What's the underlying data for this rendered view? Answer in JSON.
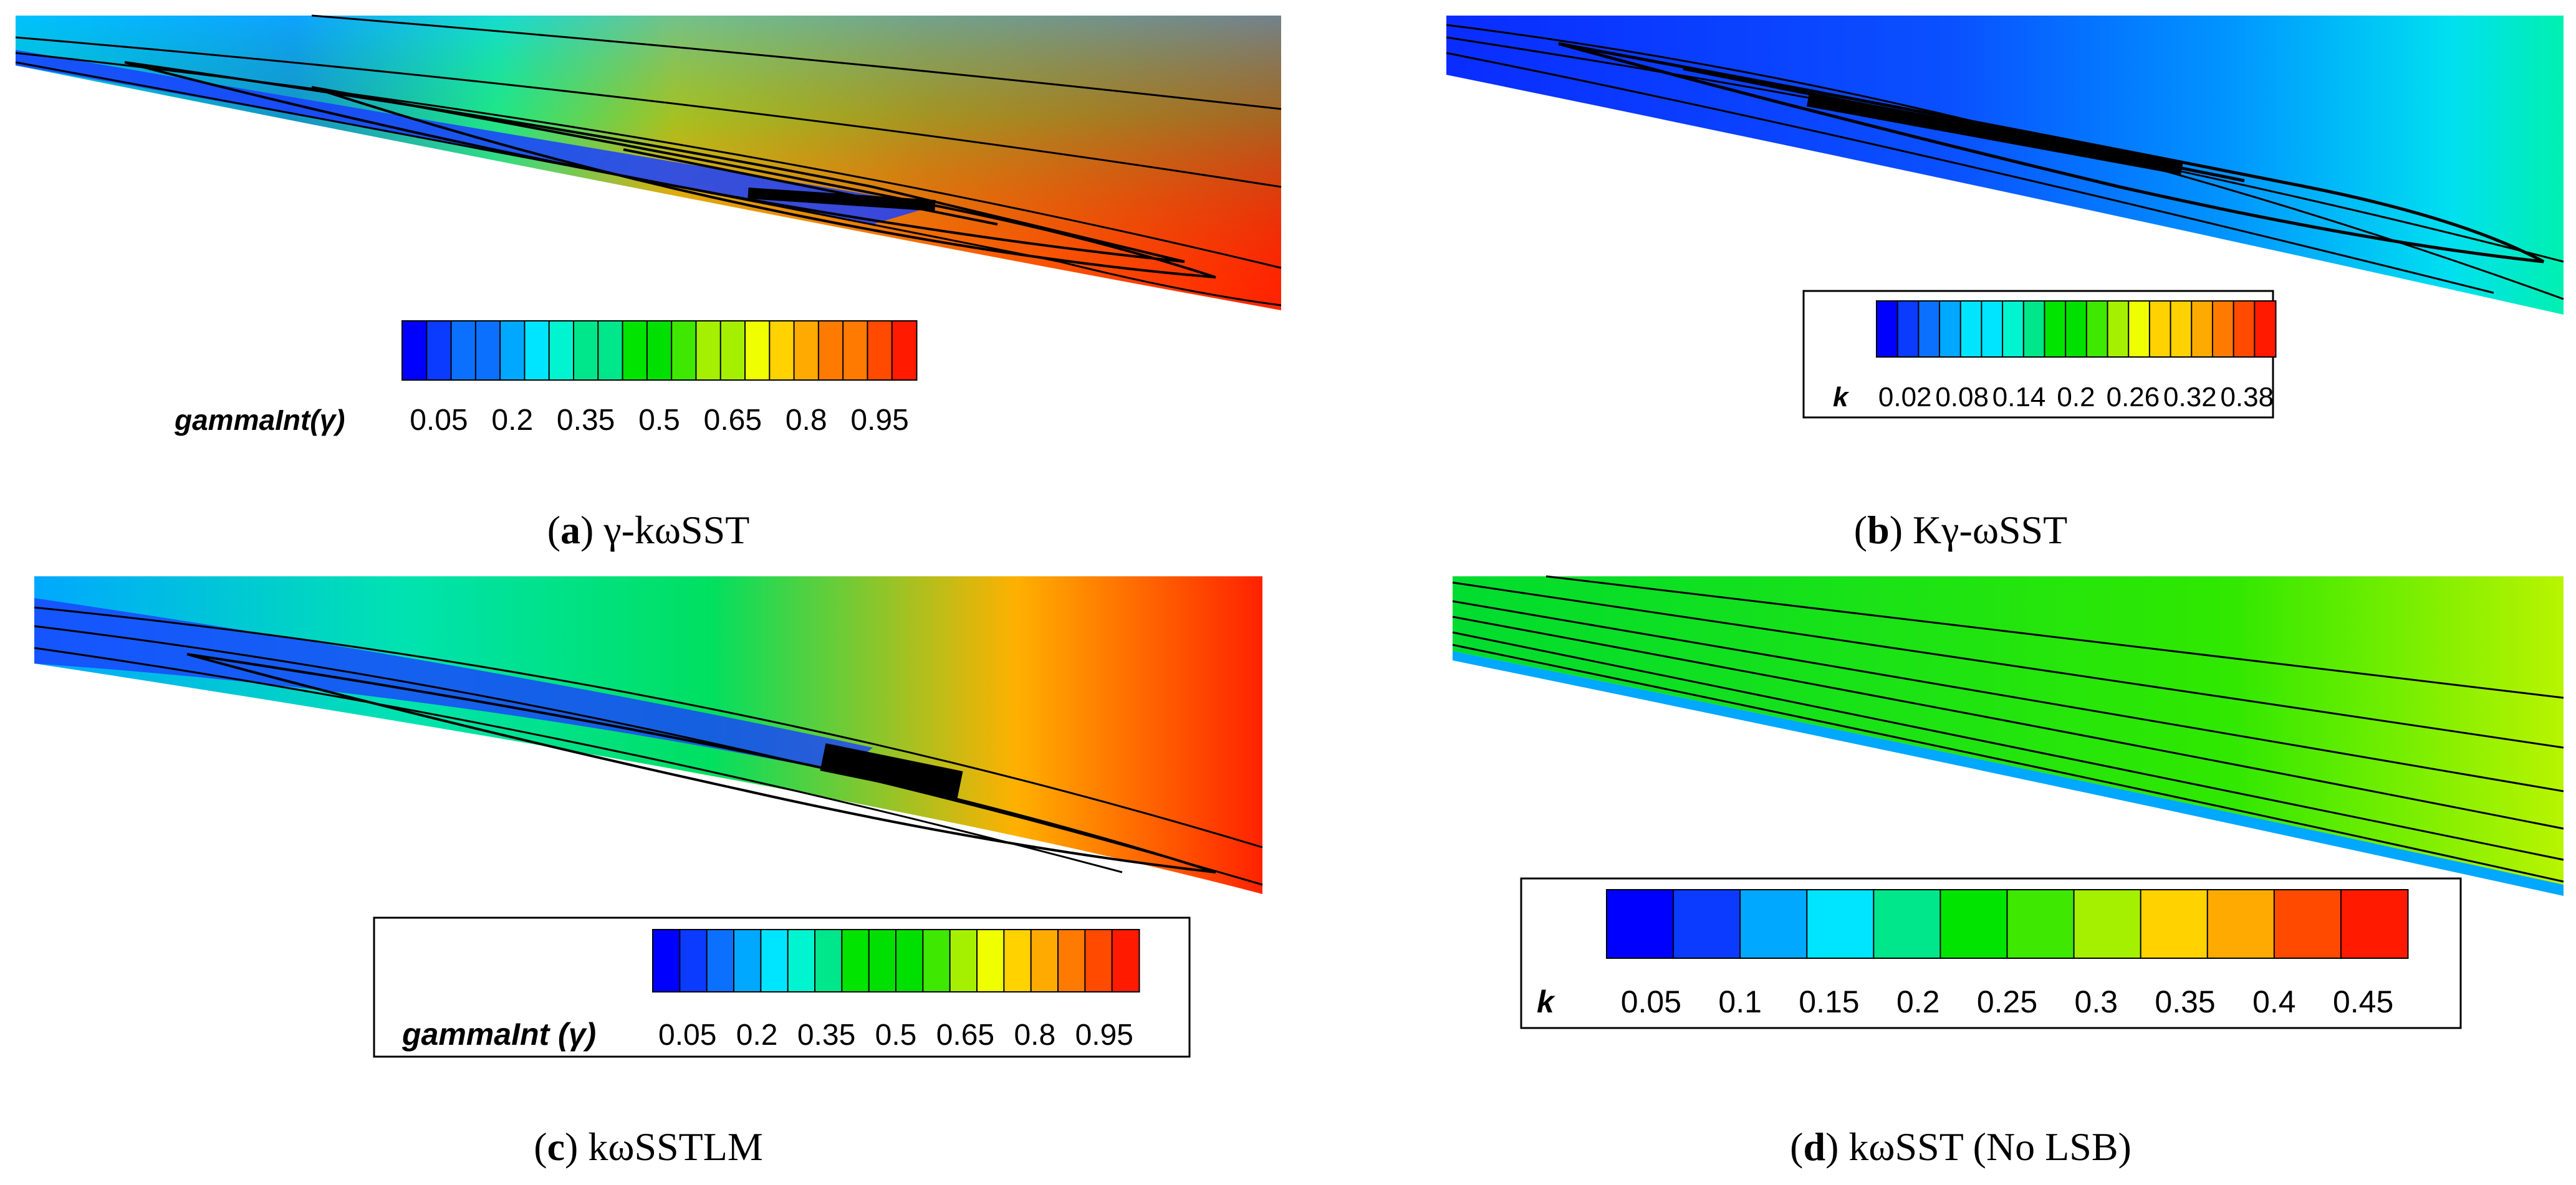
{
  "panels": [
    {
      "id": "a",
      "caption_letter": "a",
      "caption_text": "γ-kωSST",
      "legend_label": "gammaInt(γ)",
      "legend_ticks": [
        "0.05",
        "0.2",
        "0.35",
        "0.5",
        "0.65",
        "0.8",
        "0.95"
      ],
      "legend_boxed": false
    },
    {
      "id": "b",
      "caption_letter": "b",
      "caption_text": "Kγ-ωSST",
      "legend_label": "k",
      "legend_ticks": [
        "0.02",
        "0.08",
        "0.14",
        "0.2",
        "0.26",
        "0.32",
        "0.38"
      ],
      "legend_boxed": true
    },
    {
      "id": "c",
      "caption_letter": "c",
      "caption_text": "kωSSTLM",
      "legend_label": "gammaInt (γ)",
      "legend_ticks": [
        "0.05",
        "0.2",
        "0.35",
        "0.5",
        "0.65",
        "0.8",
        "0.95"
      ],
      "legend_boxed": true
    },
    {
      "id": "d",
      "caption_letter": "d",
      "caption_text": "kωSST (No LSB)",
      "legend_label": "k",
      "legend_ticks": [
        "0.05",
        "0.1",
        "0.15",
        "0.2",
        "0.25",
        "0.3",
        "0.35",
        "0.4",
        "0.45"
      ],
      "legend_boxed": true
    }
  ],
  "colors": {
    "rainbow": [
      "#0000ff",
      "#0a3bff",
      "#0c70ff",
      "#00a8ff",
      "#00e5ff",
      "#00f4d0",
      "#00e68a",
      "#00e400",
      "#00e000",
      "#3fe800",
      "#a5f000",
      "#f0ff00",
      "#ffd200",
      "#ffaa00",
      "#ff7a00",
      "#ff4a00",
      "#ff1a00"
    ],
    "streamline": "#000000"
  }
}
